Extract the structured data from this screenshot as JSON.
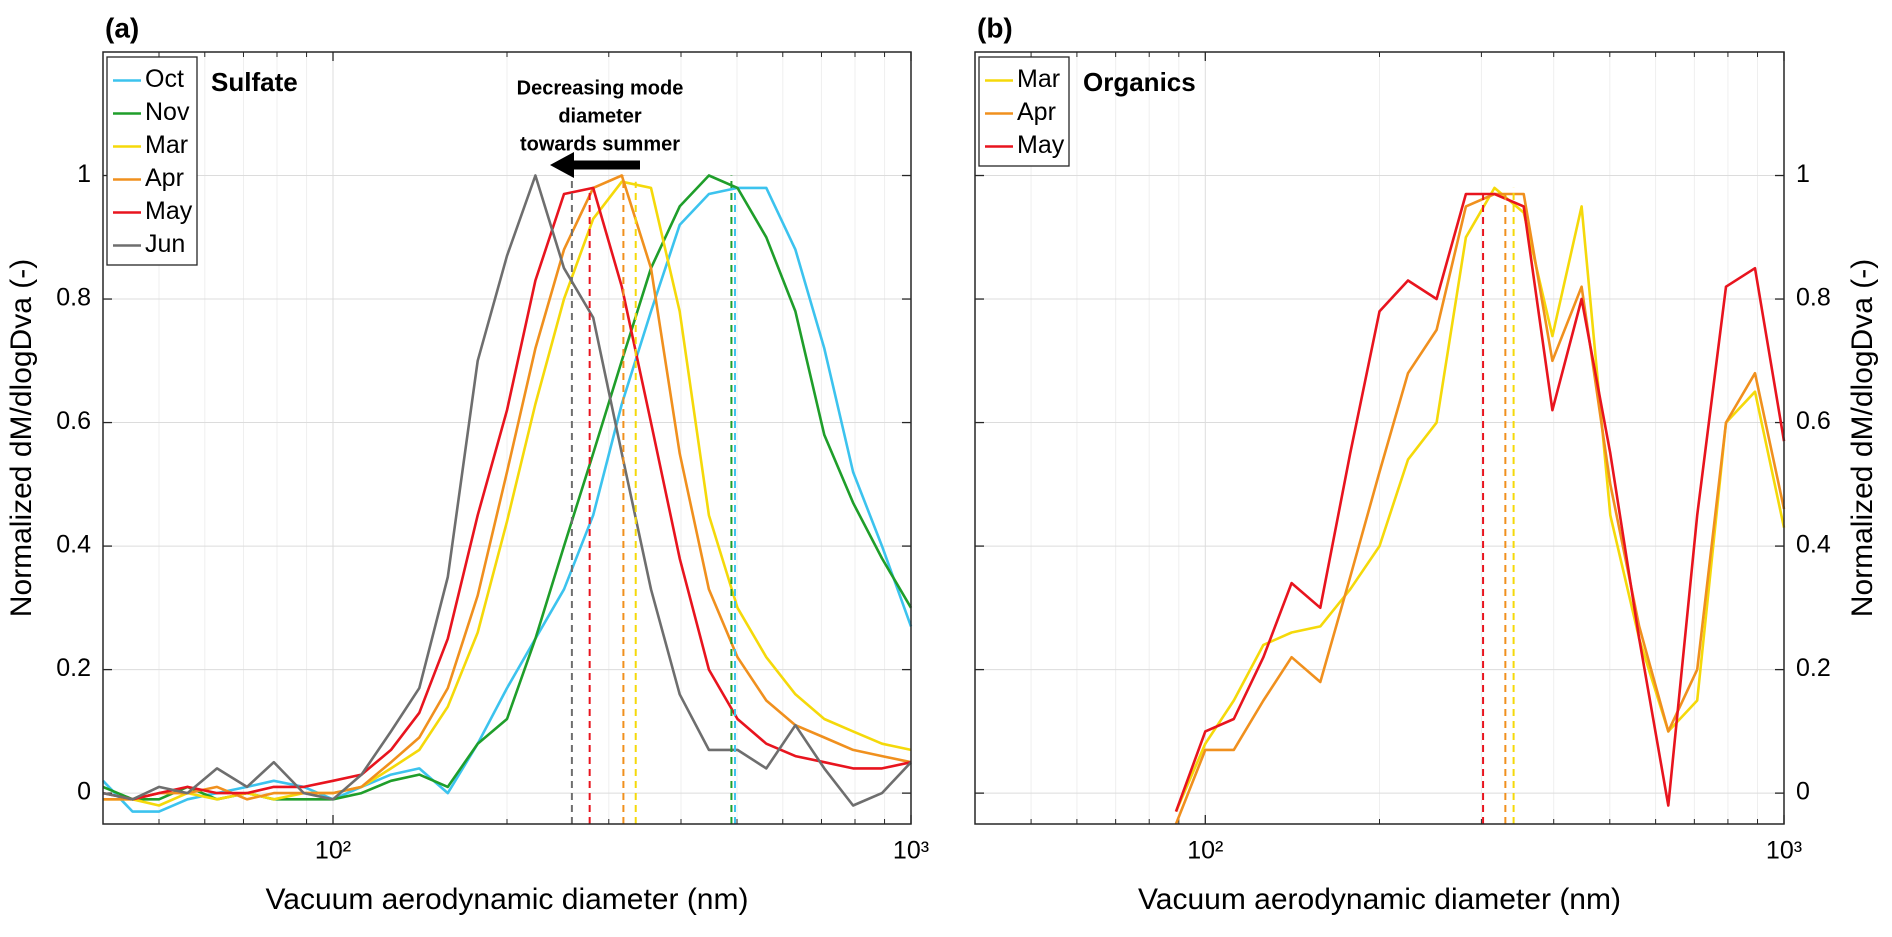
{
  "chart_data": [
    {
      "type": "line",
      "title": "(a)",
      "annotation": "Sulfate",
      "annotation_color": "#e8141e",
      "arrow_text": [
        "Decreasing mode",
        "diameter",
        "towards summer"
      ],
      "xlabel": "Vacuum aerodynamic diameter (nm)",
      "ylabel": "Normalized dM/dlogDva (-)",
      "xscale": "log",
      "xlim": [
        40,
        1000
      ],
      "ylim": [
        -0.05,
        1.2
      ],
      "y_axis_side": "left",
      "grid": true,
      "legend": "upper left",
      "xticks": [
        {
          "value": 100,
          "label": "10²"
        },
        {
          "value": 1000,
          "label": "10³"
        }
      ],
      "xminorticks": [
        50,
        60,
        70,
        80,
        90,
        200,
        300,
        400,
        500,
        600,
        700,
        800,
        900
      ],
      "yticks": [
        0,
        0.2,
        0.4,
        0.6,
        0.8,
        1
      ],
      "x": [
        40,
        45,
        50,
        56,
        63,
        71,
        79,
        89,
        100,
        112,
        126,
        141,
        158,
        178,
        200,
        224,
        251,
        282,
        316,
        355,
        398,
        447,
        501,
        562,
        631,
        708,
        794,
        891,
        1000
      ],
      "series": [
        {
          "name": "Oct",
          "color": "#3cc3ee",
          "mode": 496,
          "values": [
            0.02,
            -0.03,
            -0.03,
            -0.01,
            0.0,
            0.01,
            0.02,
            0.01,
            -0.01,
            0.01,
            0.03,
            0.04,
            0.0,
            0.08,
            0.17,
            0.25,
            0.33,
            0.45,
            0.63,
            0.78,
            0.92,
            0.97,
            0.98,
            0.98,
            0.88,
            0.72,
            0.52,
            0.4,
            0.27
          ]
        },
        {
          "name": "Nov",
          "color": "#1f9e2a",
          "mode": 489,
          "values": [
            0.01,
            -0.01,
            -0.01,
            0.01,
            -0.01,
            0.0,
            -0.01,
            -0.01,
            -0.01,
            0.0,
            0.02,
            0.03,
            0.01,
            0.08,
            0.12,
            0.25,
            0.4,
            0.55,
            0.7,
            0.85,
            0.95,
            1.0,
            0.98,
            0.9,
            0.78,
            0.58,
            0.47,
            0.38,
            0.3
          ]
        },
        {
          "name": "Mar",
          "color": "#f5d90a",
          "mode": 334,
          "values": [
            -0.01,
            -0.01,
            -0.02,
            0.0,
            -0.01,
            0.0,
            -0.01,
            0.0,
            0.0,
            0.01,
            0.04,
            0.07,
            0.14,
            0.26,
            0.44,
            0.63,
            0.8,
            0.93,
            0.99,
            0.98,
            0.78,
            0.45,
            0.3,
            0.22,
            0.16,
            0.12,
            0.1,
            0.08,
            0.07
          ]
        },
        {
          "name": "Apr",
          "color": "#f0901e",
          "mode": 318,
          "values": [
            -0.01,
            -0.01,
            0.0,
            0.0,
            0.01,
            -0.01,
            0.0,
            0.0,
            0.0,
            0.01,
            0.05,
            0.09,
            0.17,
            0.32,
            0.52,
            0.72,
            0.88,
            0.98,
            1.0,
            0.85,
            0.55,
            0.33,
            0.22,
            0.15,
            0.11,
            0.09,
            0.07,
            0.06,
            0.05
          ]
        },
        {
          "name": "May",
          "color": "#e8141e",
          "mode": 278,
          "values": [
            0.0,
            -0.01,
            0.0,
            0.01,
            0.0,
            0.0,
            0.01,
            0.01,
            0.02,
            0.03,
            0.07,
            0.13,
            0.25,
            0.45,
            0.62,
            0.83,
            0.97,
            0.98,
            0.82,
            0.6,
            0.38,
            0.2,
            0.12,
            0.08,
            0.06,
            0.05,
            0.04,
            0.04,
            0.05
          ]
        },
        {
          "name": "Jun",
          "color": "#6e6e6e",
          "mode": 259,
          "values": [
            0.0,
            -0.01,
            0.01,
            0.0,
            0.04,
            0.01,
            0.05,
            0.0,
            -0.01,
            0.03,
            0.1,
            0.17,
            0.35,
            0.7,
            0.87,
            1.0,
            0.85,
            0.77,
            0.55,
            0.33,
            0.16,
            0.07,
            0.07,
            0.04,
            0.11,
            0.04,
            -0.02,
            0.0,
            0.05
          ]
        }
      ]
    },
    {
      "type": "line",
      "title": "(b)",
      "annotation": "Organics",
      "annotation_color": "#6aaa2a",
      "xlabel": "Vacuum aerodynamic diameter (nm)",
      "ylabel": "Normalized dM/dlogDva (-)",
      "xscale": "log",
      "xlim": [
        40,
        1000
      ],
      "ylim": [
        -0.05,
        1.2
      ],
      "y_axis_side": "right",
      "grid": true,
      "legend": "upper left",
      "xticks": [
        {
          "value": 100,
          "label": "10²"
        },
        {
          "value": 1000,
          "label": "10³"
        }
      ],
      "xminorticks": [
        50,
        60,
        70,
        80,
        90,
        200,
        300,
        400,
        500,
        600,
        700,
        800,
        900
      ],
      "yticks": [
        0,
        0.2,
        0.4,
        0.6,
        0.8,
        1
      ],
      "x": [
        40,
        45,
        50,
        56,
        63,
        71,
        79,
        89,
        100,
        112,
        126,
        141,
        158,
        178,
        200,
        224,
        251,
        282,
        316,
        355,
        398,
        447,
        501,
        562,
        631,
        708,
        794,
        891,
        1000
      ],
      "series": [
        {
          "name": "Mar",
          "color": "#f5d90a",
          "mode": 341,
          "values": [
            null,
            null,
            null,
            null,
            null,
            null,
            null,
            -0.03,
            0.08,
            0.15,
            0.24,
            0.26,
            0.27,
            0.33,
            0.4,
            0.54,
            0.6,
            0.9,
            0.98,
            0.94,
            0.74,
            0.95,
            0.45,
            0.25,
            0.1,
            0.15,
            0.6,
            0.65,
            0.43
          ]
        },
        {
          "name": "Apr",
          "color": "#f0901e",
          "mode": 330,
          "values": [
            null,
            null,
            null,
            null,
            null,
            null,
            null,
            -0.05,
            0.07,
            0.07,
            0.15,
            0.22,
            0.18,
            0.35,
            0.52,
            0.68,
            0.75,
            0.95,
            0.97,
            0.97,
            0.7,
            0.82,
            0.5,
            0.27,
            0.1,
            0.2,
            0.6,
            0.68,
            0.46
          ]
        },
        {
          "name": "May",
          "color": "#e8141e",
          "mode": 302,
          "values": [
            null,
            null,
            null,
            null,
            null,
            null,
            null,
            -0.03,
            0.1,
            0.12,
            0.22,
            0.34,
            0.3,
            0.55,
            0.78,
            0.83,
            0.8,
            0.97,
            0.97,
            0.95,
            0.62,
            0.8,
            0.55,
            0.25,
            -0.02,
            0.45,
            0.82,
            0.85,
            0.57
          ]
        }
      ]
    }
  ]
}
